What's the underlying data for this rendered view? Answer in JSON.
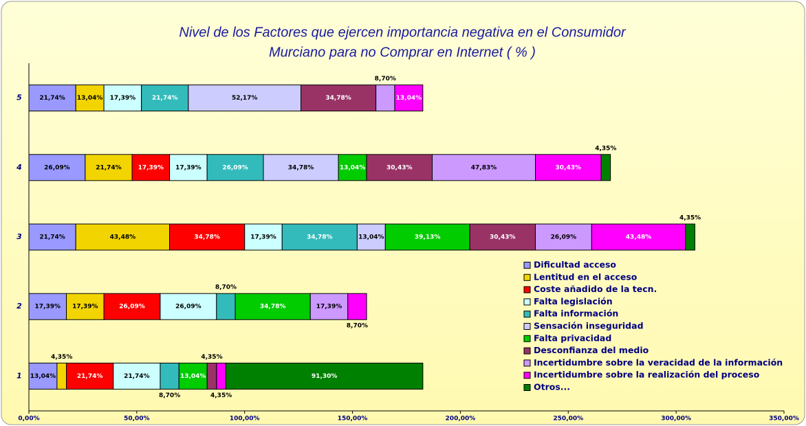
{
  "chart_data": {
    "type": "stacked-barh",
    "title": [
      "Nivel de los Factores que ejercen importancia negativa en el Consumidor",
      "Murciano  para no Comprar en Internet ( % )"
    ],
    "categories": [
      "1",
      "2",
      "3",
      "4",
      "5"
    ],
    "xlim": [
      0,
      350
    ],
    "xticks": [
      {
        "value": 0,
        "label": "0,00%"
      },
      {
        "value": 50,
        "label": "50,00%"
      },
      {
        "value": 100,
        "label": "100,00%"
      },
      {
        "value": 150,
        "label": "150,00%"
      },
      {
        "value": 200,
        "label": "200,00%"
      },
      {
        "value": 250,
        "label": "250,00%"
      },
      {
        "value": 300,
        "label": "300,00%"
      },
      {
        "value": 350,
        "label": "350,00%"
      }
    ],
    "legend": "right",
    "series": [
      {
        "name": "Dificultad acceso",
        "color": "#9999ff",
        "values": [
          13.04,
          17.39,
          21.74,
          26.09,
          21.74
        ],
        "value_labels": [
          "13,04%",
          "17,39%",
          "21,74%",
          "26,09%",
          "21,74%"
        ]
      },
      {
        "name": "Lentitud en el acceso",
        "color": "#f2d500",
        "values": [
          4.35,
          17.39,
          43.48,
          21.74,
          13.04
        ],
        "value_labels": [
          "4,35%",
          "17,39%",
          "43,48%",
          "21,74%",
          "13,04%"
        ]
      },
      {
        "name": "Coste añadido de la tecn.",
        "color": "#ff0000",
        "values": [
          21.74,
          26.09,
          34.78,
          17.39,
          null
        ],
        "value_labels": [
          "21,74%",
          "26,09%",
          "34,78%",
          "17,39%",
          null
        ]
      },
      {
        "name": "Falta legislación",
        "color": "#ccffff",
        "values": [
          21.74,
          26.09,
          17.39,
          17.39,
          17.39
        ],
        "value_labels": [
          "21,74%",
          "26,09%",
          "17,39%",
          "17,39%",
          "17,39%"
        ]
      },
      {
        "name": "Falta información",
        "color": "#33bbbb",
        "values": [
          8.7,
          8.7,
          34.78,
          26.09,
          21.74
        ],
        "value_labels": [
          "8,70%",
          "8,70%",
          "34,78%",
          "26,09%",
          "21,74%"
        ]
      },
      {
        "name": "Sensación inseguridad",
        "color": "#ccccff",
        "values": [
          null,
          null,
          13.04,
          34.78,
          52.17
        ],
        "value_labels": [
          null,
          null,
          "13,04%",
          "34,78%",
          "52,17%"
        ]
      },
      {
        "name": "Falta privacidad",
        "color": "#00cc00",
        "values": [
          13.04,
          34.78,
          39.13,
          13.04,
          null
        ],
        "value_labels": [
          "13,04%",
          "34,78%",
          "39,13%",
          "13,04%",
          null
        ]
      },
      {
        "name": "Desconfianza del medio",
        "color": "#993366",
        "values": [
          4.35,
          null,
          30.43,
          30.43,
          34.78
        ],
        "value_labels": [
          "4,35%",
          null,
          "30,43%",
          "30,43%",
          "34,78%"
        ]
      },
      {
        "name": "Incertidumbre sobre la veracidad de la información",
        "color": "#cc99ff",
        "values": [
          null,
          17.39,
          26.09,
          47.83,
          8.7
        ],
        "value_labels": [
          null,
          "17,39%",
          "26,09%",
          "47,83%",
          "8,70%"
        ]
      },
      {
        "name": "Incertidumbre sobre la realización del proceso",
        "color": "#ff00ff",
        "values": [
          4.35,
          8.7,
          43.48,
          30.43,
          13.04
        ],
        "value_labels": [
          "4,35%",
          "8,70%",
          "43,48%",
          "30,43%",
          "13,04%"
        ]
      },
      {
        "name": "Otros...",
        "color": "#008000",
        "values": [
          91.3,
          null,
          4.35,
          4.35,
          null
        ],
        "value_labels": [
          "91,30%",
          null,
          "4,35%",
          "4,35%",
          null
        ]
      }
    ]
  }
}
